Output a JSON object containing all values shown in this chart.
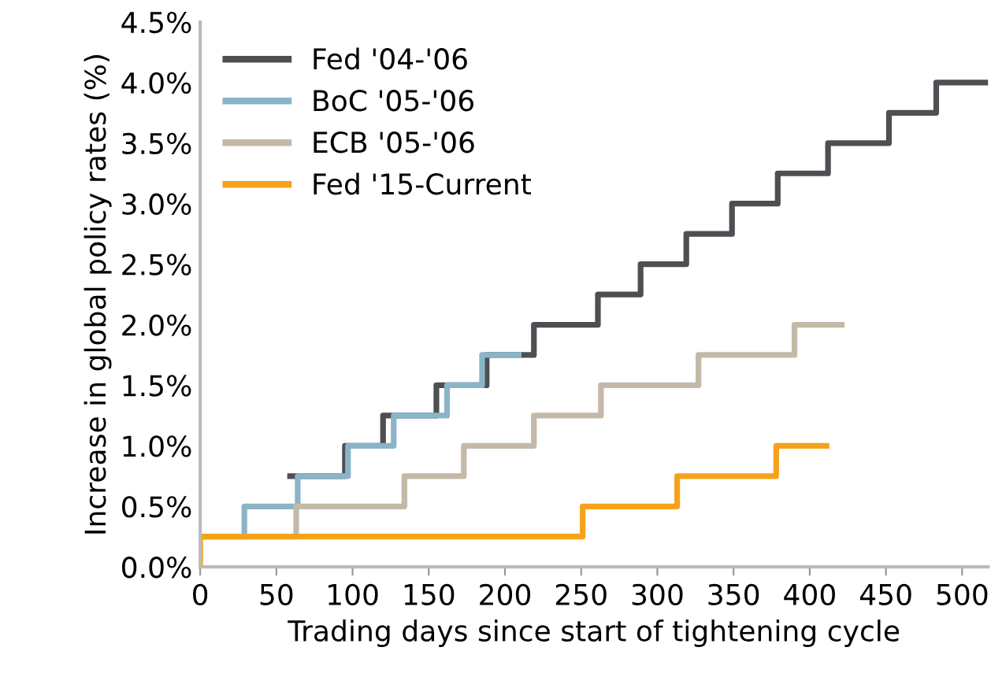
{
  "chart_data": {
    "type": "step",
    "xlabel": "Trading days since start of tightening cycle",
    "ylabel": "Increase in global policy rates (%)",
    "xlim": [
      0,
      517
    ],
    "xticks": [
      0,
      50,
      100,
      150,
      200,
      250,
      300,
      350,
      400,
      450,
      500
    ],
    "ylim": [
      0,
      4.5
    ],
    "yticks": [
      {
        "value": 0,
        "label": "0.0%"
      },
      {
        "value": 0.5,
        "label": "0.5%"
      },
      {
        "value": 1,
        "label": "1.0%"
      },
      {
        "value": 1.5,
        "label": "1.5%"
      },
      {
        "value": 2,
        "label": "2.0%"
      },
      {
        "value": 2.5,
        "label": "2.5%"
      },
      {
        "value": 3,
        "label": "3.0%"
      },
      {
        "value": 3.5,
        "label": "3.5%"
      },
      {
        "value": 4,
        "label": "4.0%"
      },
      {
        "value": 4.5,
        "label": "4.5%"
      }
    ],
    "legend": "top left",
    "grid": false,
    "marker": "none",
    "line_style": "solid",
    "series": [
      {
        "name": "Fed '04-'06",
        "color": "#4d4f53",
        "x": [
          59,
          95,
          120,
          155,
          188,
          219,
          261,
          289,
          319,
          349,
          379,
          412,
          452,
          483,
          517
        ],
        "values": [
          0.75,
          1.0,
          1.25,
          1.5,
          1.75,
          2.0,
          2.25,
          2.5,
          2.75,
          3.0,
          3.25,
          3.5,
          3.75,
          4.0,
          4.0
        ]
      },
      {
        "name": "BoC '05-'06",
        "color": "#8ab4c8",
        "x": [
          0,
          29,
          64,
          97,
          127,
          162,
          185,
          209
        ],
        "values": [
          0.25,
          0.5,
          0.75,
          1.0,
          1.25,
          1.5,
          1.75,
          1.75
        ]
      },
      {
        "name": "ECB '05-'06",
        "color": "#c4b9a8",
        "x": [
          0,
          63,
          134,
          173,
          219,
          263,
          327,
          390,
          421
        ],
        "values": [
          0.25,
          0.5,
          0.75,
          1.0,
          1.25,
          1.5,
          1.75,
          2.0,
          2.0
        ]
      },
      {
        "name": "Fed '15-Current",
        "color": "#f5a21b",
        "x": [
          0,
          0,
          251,
          313,
          378,
          411
        ],
        "values": [
          0,
          0.25,
          0.5,
          0.75,
          1.0,
          1.0
        ]
      }
    ]
  }
}
